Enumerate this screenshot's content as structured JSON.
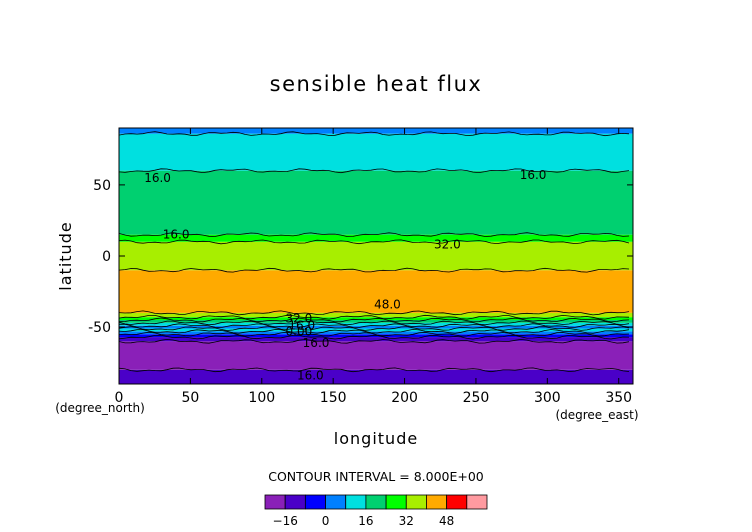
{
  "chart_data": {
    "type": "heatmap",
    "title": "sensible heat flux",
    "xlabel": "longitude",
    "ylabel": "latitude",
    "x_unit": "(degree_east)",
    "y_unit": "(degree_north)",
    "xlim": [
      0,
      360
    ],
    "ylim": [
      -90,
      90
    ],
    "x_ticks": [
      0,
      50,
      100,
      150,
      200,
      250,
      300,
      350
    ],
    "y_ticks": [
      -50,
      0,
      50
    ],
    "contour_interval_text": "CONTOUR INTERVAL = 8.000E+00",
    "colorbar": {
      "levels": [
        -24,
        -16,
        -8,
        0,
        8,
        16,
        24,
        32,
        40,
        48,
        56
      ],
      "tick_labels": [
        -16,
        0,
        16,
        32,
        48
      ],
      "colors": [
        "#8a20b8",
        "#4a00c8",
        "#0000ff",
        "#0080ff",
        "#00e0e0",
        "#00d070",
        "#00ff00",
        "#a8ee00",
        "#ffaa00",
        "#ff0000",
        "#ff9aa0"
      ]
    },
    "bands": [
      {
        "lat": [
          -90,
          -80
        ],
        "value": -12
      },
      {
        "lat": [
          -80,
          -60
        ],
        "value": -20
      },
      {
        "lat": [
          -60,
          -57
        ],
        "value": -12
      },
      {
        "lat": [
          -57,
          -55
        ],
        "value": -4
      },
      {
        "lat": [
          -55,
          -53
        ],
        "value": 4
      },
      {
        "lat": [
          -53,
          -51
        ],
        "value": 12
      },
      {
        "lat": [
          -51,
          -49
        ],
        "value": 4
      },
      {
        "lat": [
          -49,
          -47
        ],
        "value": 12
      },
      {
        "lat": [
          -47,
          -45
        ],
        "value": 20
      },
      {
        "lat": [
          -45,
          -43
        ],
        "value": 28
      },
      {
        "lat": [
          -43,
          -40
        ],
        "value": 36
      },
      {
        "lat": [
          -40,
          -10
        ],
        "value": 44
      },
      {
        "lat": [
          -10,
          10
        ],
        "value": 36
      },
      {
        "lat": [
          10,
          15
        ],
        "value": 28
      },
      {
        "lat": [
          15,
          60
        ],
        "value": 20
      },
      {
        "lat": [
          60,
          86
        ],
        "value": 12
      },
      {
        "lat": [
          86,
          90
        ],
        "value": 4
      }
    ],
    "contour_labels": [
      {
        "text": "16.0",
        "lon": 27,
        "lat": 55
      },
      {
        "text": "16.0",
        "lon": 290,
        "lat": 57
      },
      {
        "text": "16.0",
        "lon": 40,
        "lat": 15
      },
      {
        "text": "32.0",
        "lon": 230,
        "lat": 8
      },
      {
        "text": "48.0",
        "lon": 188,
        "lat": -34
      },
      {
        "text": "32.0",
        "lon": 126,
        "lat": -44
      },
      {
        "text": "16.0",
        "lon": 128,
        "lat": -49
      },
      {
        "text": "0.00",
        "lon": 126,
        "lat": -53
      },
      {
        "text": "16.0",
        "lon": 138,
        "lat": -61
      },
      {
        "text": "16.0",
        "lon": 134,
        "lat": -84
      }
    ]
  }
}
